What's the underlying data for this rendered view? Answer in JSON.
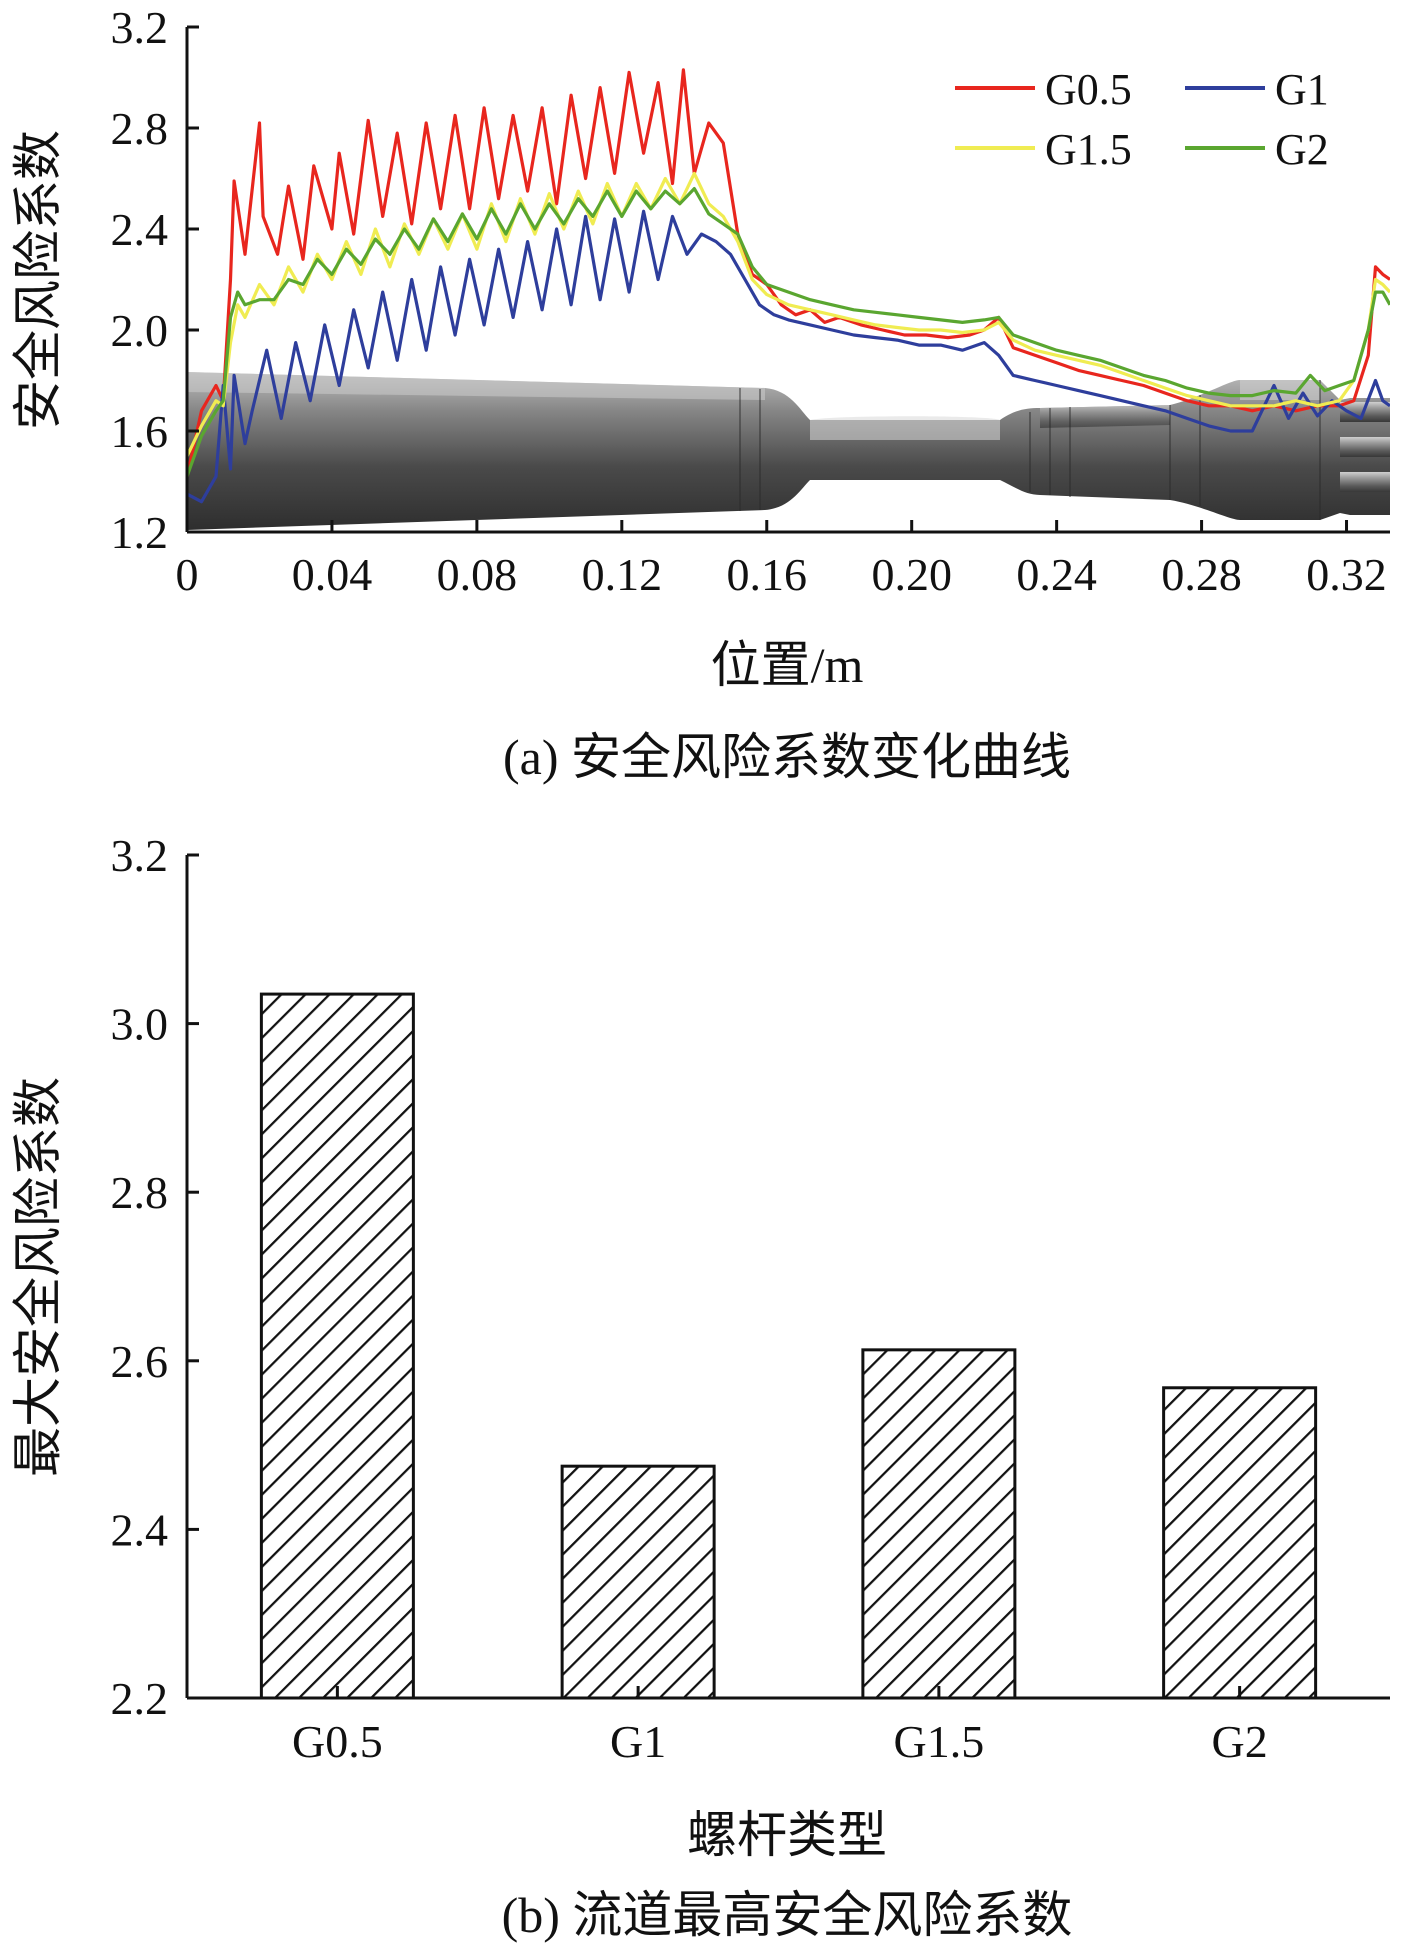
{
  "chart_data": [
    {
      "type": "line",
      "caption": "(a) 安全风险系数变化曲线",
      "xlabel": "位置/m",
      "ylabel": "安全风险系数",
      "xlim": [
        0,
        0.332
      ],
      "ylim": [
        1.2,
        3.2
      ],
      "xticks": [
        0,
        0.04,
        0.08,
        0.12,
        0.16,
        0.2,
        0.24,
        0.28,
        0.32
      ],
      "xtick_labels": [
        "0",
        "0.04",
        "0.08",
        "0.12",
        "0.16",
        "0.20",
        "0.24",
        "0.28",
        "0.32"
      ],
      "yticks": [
        1.2,
        1.6,
        2.0,
        2.4,
        2.8,
        3.2
      ],
      "ytick_labels": [
        "1.2",
        "1.6",
        "2.0",
        "2.4",
        "2.8",
        "3.2"
      ],
      "legend_position": "top-right",
      "background": "screw-flow-channel-geometry",
      "series": [
        {
          "name": "G0.5",
          "color": "#e8261e",
          "x": [
            0,
            0.004,
            0.008,
            0.01,
            0.012,
            0.013,
            0.016,
            0.02,
            0.021,
            0.025,
            0.028,
            0.032,
            0.035,
            0.04,
            0.042,
            0.046,
            0.05,
            0.054,
            0.058,
            0.062,
            0.066,
            0.07,
            0.074,
            0.078,
            0.082,
            0.086,
            0.09,
            0.094,
            0.098,
            0.102,
            0.106,
            0.11,
            0.114,
            0.118,
            0.122,
            0.126,
            0.13,
            0.134,
            0.137,
            0.14,
            0.144,
            0.148,
            0.152,
            0.156,
            0.16,
            0.164,
            0.168,
            0.172,
            0.176,
            0.18,
            0.186,
            0.192,
            0.198,
            0.204,
            0.21,
            0.216,
            0.22,
            0.224,
            0.228,
            0.234,
            0.24,
            0.246,
            0.252,
            0.258,
            0.264,
            0.27,
            0.276,
            0.282,
            0.288,
            0.294,
            0.3,
            0.306,
            0.312,
            0.318,
            0.322,
            0.326,
            0.328,
            0.33,
            0.332
          ],
          "y": [
            1.42,
            1.68,
            1.78,
            1.72,
            2.2,
            2.59,
            2.3,
            2.82,
            2.45,
            2.3,
            2.57,
            2.28,
            2.65,
            2.4,
            2.7,
            2.38,
            2.83,
            2.45,
            2.78,
            2.42,
            2.82,
            2.48,
            2.85,
            2.48,
            2.88,
            2.52,
            2.85,
            2.55,
            2.88,
            2.5,
            2.93,
            2.6,
            2.96,
            2.62,
            3.02,
            2.7,
            2.98,
            2.58,
            3.03,
            2.62,
            2.82,
            2.74,
            2.38,
            2.22,
            2.18,
            2.1,
            2.06,
            2.08,
            2.03,
            2.05,
            2.02,
            2.0,
            1.98,
            1.98,
            1.97,
            1.98,
            2.0,
            2.05,
            1.93,
            1.9,
            1.87,
            1.84,
            1.82,
            1.8,
            1.78,
            1.75,
            1.72,
            1.7,
            1.7,
            1.68,
            1.7,
            1.68,
            1.7,
            1.7,
            1.72,
            1.9,
            2.25,
            2.22,
            2.2
          ]
        },
        {
          "name": "G1",
          "color": "#2e3e9c",
          "x": [
            0,
            0.004,
            0.008,
            0.01,
            0.012,
            0.013,
            0.016,
            0.018,
            0.022,
            0.026,
            0.03,
            0.034,
            0.038,
            0.042,
            0.046,
            0.05,
            0.054,
            0.058,
            0.062,
            0.066,
            0.07,
            0.074,
            0.078,
            0.082,
            0.086,
            0.09,
            0.094,
            0.098,
            0.102,
            0.106,
            0.11,
            0.114,
            0.118,
            0.122,
            0.126,
            0.13,
            0.134,
            0.138,
            0.142,
            0.146,
            0.15,
            0.154,
            0.158,
            0.162,
            0.166,
            0.172,
            0.178,
            0.184,
            0.19,
            0.196,
            0.202,
            0.208,
            0.214,
            0.22,
            0.224,
            0.228,
            0.234,
            0.24,
            0.246,
            0.252,
            0.258,
            0.264,
            0.27,
            0.276,
            0.282,
            0.288,
            0.294,
            0.3,
            0.304,
            0.308,
            0.312,
            0.316,
            0.32,
            0.324,
            0.328,
            0.33,
            0.332
          ],
          "y": [
            1.35,
            1.32,
            1.42,
            1.78,
            1.45,
            1.82,
            1.55,
            1.68,
            1.92,
            1.65,
            1.95,
            1.72,
            2.02,
            1.78,
            2.08,
            1.85,
            2.15,
            1.88,
            2.2,
            1.92,
            2.25,
            1.98,
            2.28,
            2.02,
            2.32,
            2.05,
            2.35,
            2.08,
            2.4,
            2.1,
            2.45,
            2.12,
            2.44,
            2.15,
            2.47,
            2.2,
            2.45,
            2.3,
            2.38,
            2.35,
            2.3,
            2.2,
            2.1,
            2.06,
            2.04,
            2.02,
            2.0,
            1.98,
            1.97,
            1.96,
            1.94,
            1.94,
            1.92,
            1.95,
            1.9,
            1.82,
            1.8,
            1.78,
            1.76,
            1.74,
            1.72,
            1.7,
            1.68,
            1.65,
            1.62,
            1.6,
            1.6,
            1.78,
            1.65,
            1.75,
            1.66,
            1.72,
            1.68,
            1.65,
            1.8,
            1.72,
            1.7
          ]
        },
        {
          "name": "G1.5",
          "color": "#f0ec52",
          "x": [
            0,
            0.004,
            0.008,
            0.01,
            0.012,
            0.014,
            0.016,
            0.02,
            0.024,
            0.028,
            0.032,
            0.036,
            0.04,
            0.044,
            0.048,
            0.052,
            0.056,
            0.06,
            0.064,
            0.068,
            0.072,
            0.076,
            0.08,
            0.084,
            0.088,
            0.092,
            0.096,
            0.1,
            0.104,
            0.108,
            0.112,
            0.116,
            0.12,
            0.124,
            0.128,
            0.132,
            0.136,
            0.14,
            0.144,
            0.148,
            0.152,
            0.156,
            0.16,
            0.166,
            0.172,
            0.178,
            0.184,
            0.19,
            0.196,
            0.202,
            0.208,
            0.214,
            0.22,
            0.224,
            0.228,
            0.234,
            0.24,
            0.246,
            0.252,
            0.258,
            0.264,
            0.27,
            0.276,
            0.282,
            0.288,
            0.294,
            0.3,
            0.306,
            0.312,
            0.318,
            0.322,
            0.326,
            0.328,
            0.33,
            0.332
          ],
          "y": [
            1.5,
            1.62,
            1.72,
            1.7,
            1.95,
            2.1,
            2.05,
            2.18,
            2.1,
            2.25,
            2.15,
            2.3,
            2.2,
            2.35,
            2.22,
            2.4,
            2.25,
            2.42,
            2.3,
            2.44,
            2.32,
            2.46,
            2.32,
            2.5,
            2.35,
            2.52,
            2.38,
            2.54,
            2.4,
            2.55,
            2.42,
            2.58,
            2.45,
            2.58,
            2.48,
            2.6,
            2.5,
            2.62,
            2.5,
            2.45,
            2.35,
            2.2,
            2.14,
            2.1,
            2.08,
            2.06,
            2.04,
            2.02,
            2.01,
            2.0,
            2.0,
            1.99,
            2.0,
            2.03,
            1.96,
            1.92,
            1.9,
            1.88,
            1.86,
            1.83,
            1.8,
            1.77,
            1.74,
            1.72,
            1.7,
            1.7,
            1.7,
            1.72,
            1.7,
            1.72,
            1.8,
            2.0,
            2.2,
            2.18,
            2.15
          ]
        },
        {
          "name": "G2",
          "color": "#5aa630",
          "x": [
            0,
            0.004,
            0.008,
            0.01,
            0.012,
            0.014,
            0.016,
            0.02,
            0.024,
            0.028,
            0.032,
            0.036,
            0.04,
            0.044,
            0.048,
            0.052,
            0.056,
            0.06,
            0.064,
            0.068,
            0.072,
            0.076,
            0.08,
            0.084,
            0.088,
            0.092,
            0.096,
            0.1,
            0.104,
            0.108,
            0.112,
            0.116,
            0.12,
            0.124,
            0.128,
            0.132,
            0.136,
            0.14,
            0.144,
            0.148,
            0.152,
            0.156,
            0.16,
            0.166,
            0.172,
            0.178,
            0.184,
            0.19,
            0.196,
            0.202,
            0.208,
            0.214,
            0.22,
            0.224,
            0.228,
            0.234,
            0.24,
            0.246,
            0.252,
            0.258,
            0.264,
            0.27,
            0.276,
            0.282,
            0.288,
            0.294,
            0.3,
            0.306,
            0.31,
            0.314,
            0.318,
            0.322,
            0.326,
            0.328,
            0.33,
            0.332
          ],
          "y": [
            1.42,
            1.58,
            1.68,
            1.72,
            2.05,
            2.15,
            2.1,
            2.12,
            2.12,
            2.2,
            2.18,
            2.28,
            2.22,
            2.32,
            2.26,
            2.36,
            2.3,
            2.4,
            2.32,
            2.44,
            2.35,
            2.46,
            2.36,
            2.48,
            2.38,
            2.5,
            2.4,
            2.5,
            2.42,
            2.52,
            2.45,
            2.55,
            2.45,
            2.55,
            2.48,
            2.55,
            2.5,
            2.56,
            2.46,
            2.42,
            2.38,
            2.25,
            2.18,
            2.15,
            2.12,
            2.1,
            2.08,
            2.07,
            2.06,
            2.05,
            2.04,
            2.03,
            2.04,
            2.05,
            1.98,
            1.95,
            1.92,
            1.9,
            1.88,
            1.85,
            1.82,
            1.8,
            1.77,
            1.75,
            1.74,
            1.74,
            1.76,
            1.75,
            1.82,
            1.76,
            1.78,
            1.8,
            2.0,
            2.15,
            2.15,
            2.1
          ]
        }
      ]
    },
    {
      "type": "bar",
      "caption": "(b) 流道最高安全风险系数",
      "xlabel": "螺杆类型",
      "ylabel": "最大安全风险系数",
      "ylim": [
        2.2,
        3.2
      ],
      "yticks": [
        2.2,
        2.4,
        2.6,
        2.8,
        3.0,
        3.2
      ],
      "ytick_labels": [
        "2.2",
        "2.4",
        "2.6",
        "2.8",
        "3.0",
        "3.2"
      ],
      "categories": [
        "G0.5",
        "G1",
        "G1.5",
        "G2"
      ],
      "values": [
        3.035,
        2.475,
        2.613,
        2.568
      ],
      "fill": "diagonal-hatch"
    }
  ]
}
